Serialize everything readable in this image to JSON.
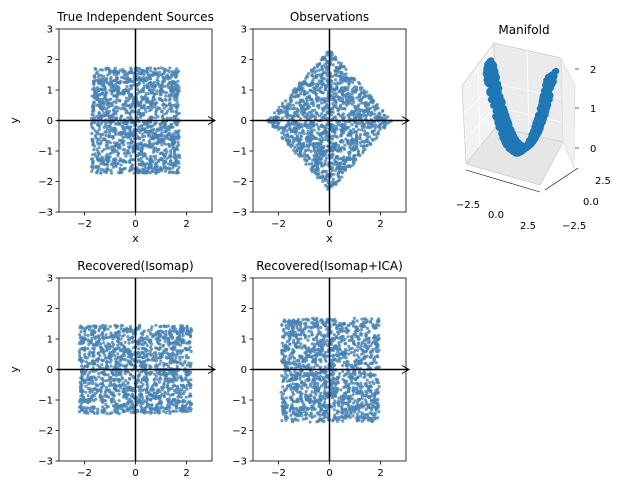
{
  "figure": {
    "background": "#ffffff",
    "point_color": "#4682b4"
  },
  "chart_data": [
    {
      "id": "true-sources",
      "type": "scatter",
      "title": "True Independent Sources",
      "xlabel": "x",
      "ylabel": "y",
      "xlim": [
        -3,
        3
      ],
      "ylim": [
        -3,
        3
      ],
      "xticks": [
        "−2",
        "0",
        "2"
      ],
      "yticks": [
        "−3",
        "−2",
        "−1",
        "0",
        "1",
        "2",
        "3"
      ],
      "region": {
        "shape": "square",
        "x_range": [
          -1.73,
          1.73
        ],
        "y_range": [
          -1.73,
          1.73
        ]
      },
      "n_points": 1500,
      "point_color": "#4682b4"
    },
    {
      "id": "observations",
      "type": "scatter",
      "title": "Observations",
      "xlabel": "x",
      "ylabel": "",
      "xlim": [
        -3,
        3
      ],
      "ylim": [
        -3,
        3
      ],
      "xticks": [
        "−2",
        "0",
        "2"
      ],
      "yticks": [
        "−3",
        "−2",
        "−1",
        "0",
        "1",
        "2",
        "3"
      ],
      "region": {
        "shape": "diamond",
        "half_diagonal_x": 2.45,
        "half_diagonal_y": 2.35
      },
      "n_points": 1500,
      "point_color": "#4682b4"
    },
    {
      "id": "manifold",
      "type": "scatter3d",
      "title": "Manifold",
      "xticks": [
        "−2.5",
        "0.0",
        "2.5"
      ],
      "yticks": [
        "−2.5",
        "0.0",
        "2.5"
      ],
      "zticks": [
        "0",
        "1",
        "2"
      ],
      "zlim": [
        0,
        2
      ],
      "surface": "z = x^2 / 3 (parabolic sheet)",
      "point_color": "#1f77b4"
    },
    {
      "id": "recovered-isomap",
      "type": "scatter",
      "title": "Recovered(Isomap)",
      "xlabel": "",
      "ylabel": "y",
      "xlim": [
        -3,
        3
      ],
      "ylim": [
        -3,
        3
      ],
      "xticks": [
        "−2",
        "0",
        "2"
      ],
      "yticks": [
        "−3",
        "−2",
        "−1",
        "0",
        "1",
        "2",
        "3"
      ],
      "region": {
        "shape": "rectangle",
        "x_range": [
          -2.2,
          2.2
        ],
        "y_range": [
          -1.45,
          1.45
        ]
      },
      "n_points": 1500,
      "point_color": "#4682b4"
    },
    {
      "id": "recovered-isomap-ica",
      "type": "scatter",
      "title": "Recovered(Isomap+ICA)",
      "xlabel": "",
      "ylabel": "",
      "xlim": [
        -3,
        3
      ],
      "ylim": [
        -3,
        3
      ],
      "xticks": [
        "−2",
        "0",
        "2"
      ],
      "yticks": [
        "−3",
        "−2",
        "−1",
        "0",
        "1",
        "2",
        "3"
      ],
      "region": {
        "shape": "rectangle",
        "x_range": [
          -1.9,
          1.95
        ],
        "y_range": [
          -1.72,
          1.68
        ]
      },
      "n_points": 1500,
      "point_color": "#4682b4"
    }
  ]
}
